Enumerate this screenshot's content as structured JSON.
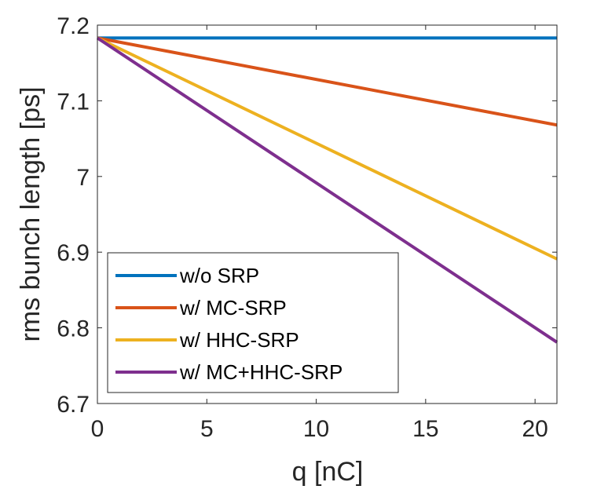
{
  "chart_data": {
    "type": "line",
    "xlabel": "q [nC]",
    "ylabel": "rms bunch length [ps]",
    "xlim": [
      0,
      21
    ],
    "ylim": [
      6.7,
      7.2
    ],
    "xticks": [
      0,
      5,
      10,
      15,
      20
    ],
    "yticks": [
      6.7,
      6.8,
      6.9,
      7.0,
      7.1,
      7.2
    ],
    "xtick_labels": [
      "0",
      "5",
      "10",
      "15",
      "20"
    ],
    "ytick_labels": [
      "6.7",
      "6.8",
      "6.9",
      "7",
      "7.1",
      "7.2"
    ],
    "grid": false,
    "legend_position": "bottom-left",
    "series": [
      {
        "name": "w/o SRP",
        "color": "#0072BD",
        "x": [
          0,
          21
        ],
        "y": [
          7.183,
          7.183
        ]
      },
      {
        "name": "w/ MC-SRP",
        "color": "#D95319",
        "x": [
          0,
          21
        ],
        "y": [
          7.183,
          7.068
        ]
      },
      {
        "name": "w/ HHC-SRP",
        "color": "#EDB120",
        "x": [
          0,
          21
        ],
        "y": [
          7.183,
          6.891
        ]
      },
      {
        "name": "w/ MC+HHC-SRP",
        "color": "#7E2F8E",
        "x": [
          0,
          21
        ],
        "y": [
          7.183,
          6.781
        ]
      }
    ]
  }
}
